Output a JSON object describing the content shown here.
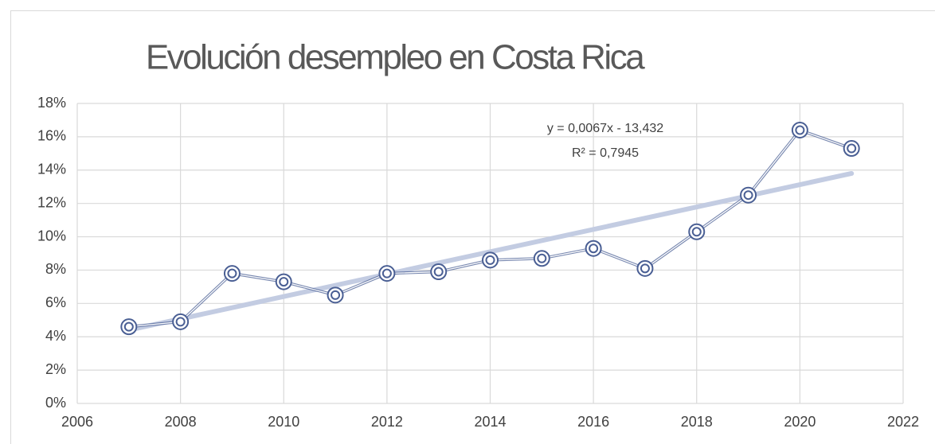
{
  "chart_data": {
    "type": "line",
    "title": "Evolución desempleo en Costa Rica",
    "annotations": [
      "y = 0,0067x - 13,432",
      "R² = 0,7945"
    ],
    "x": [
      2007,
      2008,
      2009,
      2010,
      2011,
      2012,
      2013,
      2014,
      2015,
      2016,
      2017,
      2018,
      2019,
      2020,
      2021
    ],
    "series": [
      {
        "name": "Desempleo",
        "color": "#4a5f94",
        "values": [
          4.6,
          4.9,
          7.8,
          7.3,
          6.5,
          7.8,
          7.9,
          8.6,
          8.7,
          9.3,
          8.1,
          10.3,
          12.5,
          16.4,
          15.3
        ]
      }
    ],
    "trendline": {
      "color": "#c3cce2",
      "x": [
        2007,
        2021
      ],
      "values": [
        4.4,
        13.8
      ]
    },
    "xlim": [
      2006,
      2022
    ],
    "xticks": [
      2006,
      2008,
      2010,
      2012,
      2014,
      2016,
      2018,
      2020,
      2022
    ],
    "ylim": [
      0,
      18
    ],
    "yticks": [
      {
        "value": 0,
        "label": "0%"
      },
      {
        "value": 2,
        "label": "2%"
      },
      {
        "value": 4,
        "label": "4%"
      },
      {
        "value": 6,
        "label": "6%"
      },
      {
        "value": 8,
        "label": "8%"
      },
      {
        "value": 10,
        "label": "10%"
      },
      {
        "value": 12,
        "label": "12%"
      },
      {
        "value": 14,
        "label": "14%"
      },
      {
        "value": 16,
        "label": "16%"
      },
      {
        "value": 18,
        "label": "18%"
      }
    ],
    "grid": true
  }
}
